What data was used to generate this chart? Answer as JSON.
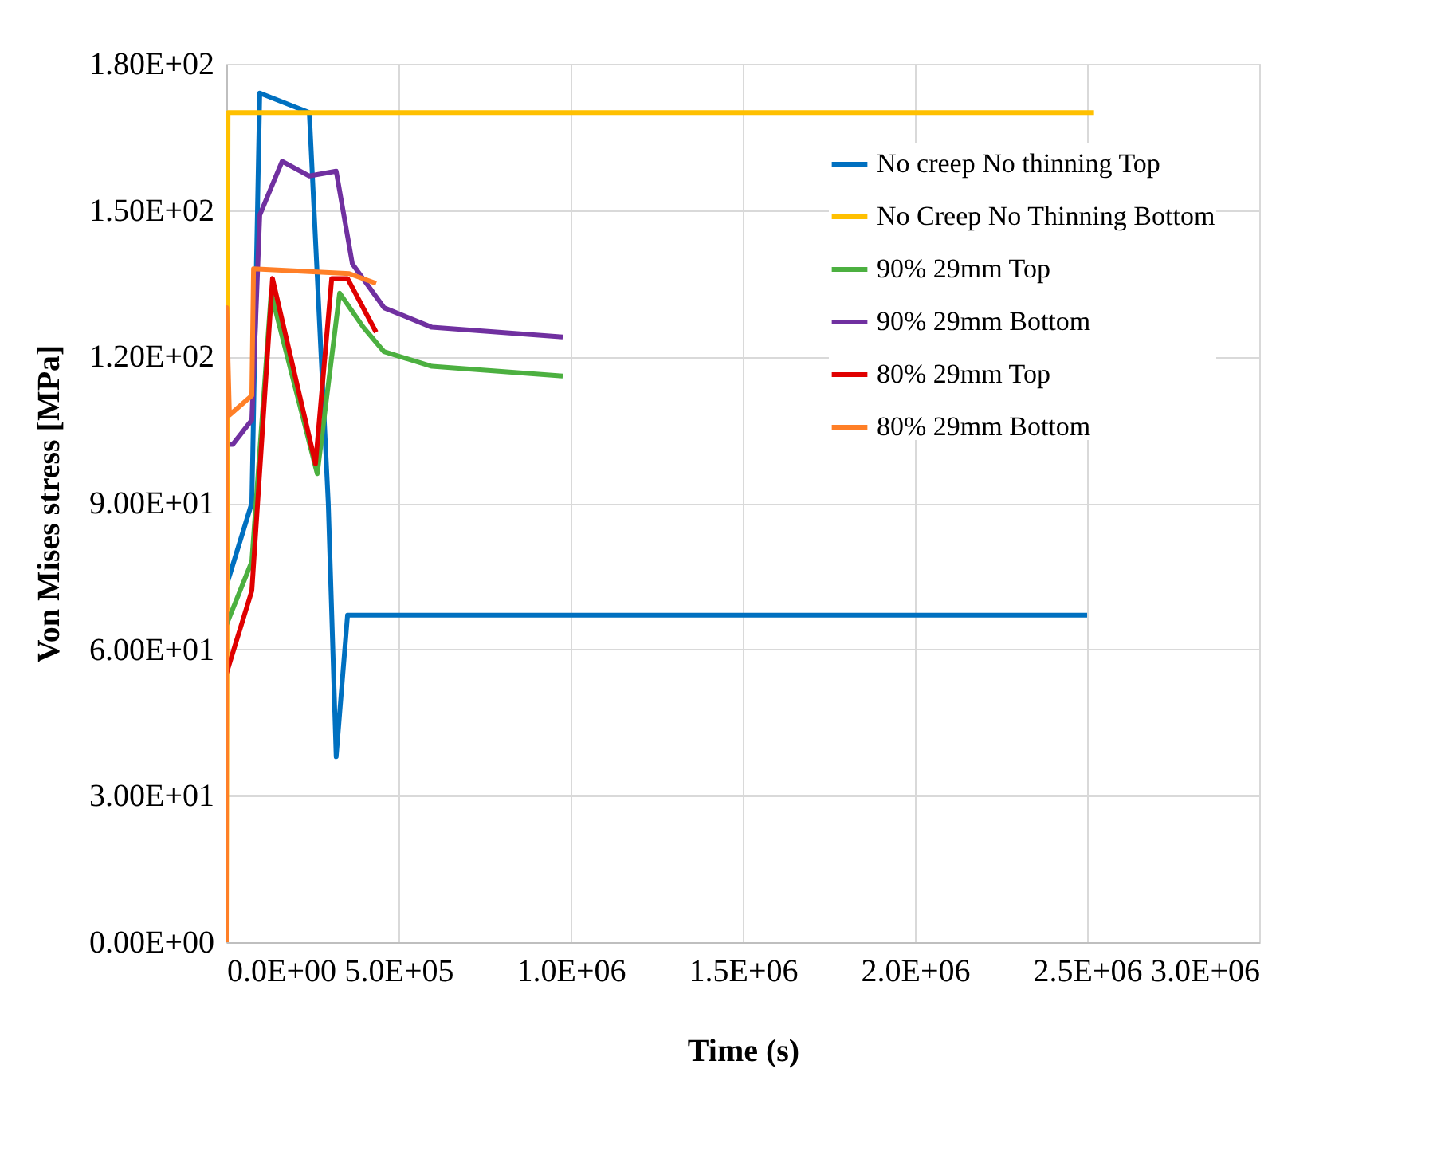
{
  "chart_data": {
    "type": "line",
    "xlabel": "Time (s)",
    "ylabel": "Von Mises stress [MPa]",
    "xlim": [
      0,
      3000000
    ],
    "ylim": [
      0,
      180
    ],
    "xticks": [
      {
        "value": 0,
        "label": "0.0E+00"
      },
      {
        "value": 500000,
        "label": "5.0E+05"
      },
      {
        "value": 1000000,
        "label": "1.0E+06"
      },
      {
        "value": 1500000,
        "label": "1.5E+06"
      },
      {
        "value": 2000000,
        "label": "2.0E+06"
      },
      {
        "value": 2500000,
        "label": "2.5E+06"
      },
      {
        "value": 3000000,
        "label": "3.0E+06"
      }
    ],
    "yticks": [
      {
        "value": 0,
        "label": "0.00E+00"
      },
      {
        "value": 30,
        "label": "3.00E+01"
      },
      {
        "value": 60,
        "label": "6.00E+01"
      },
      {
        "value": 90,
        "label": "9.00E+01"
      },
      {
        "value": 120,
        "label": "1.20E+02"
      },
      {
        "value": 150,
        "label": "1.50E+02"
      },
      {
        "value": 180,
        "label": "1.80E+02"
      }
    ],
    "grid": true,
    "legend": "top right",
    "marker": "none",
    "line_style": "solid",
    "series": [
      {
        "name": "No creep No thinning Top",
        "color": "#0070c0",
        "x": [
          0,
          74000,
          97000,
          241000,
          296000,
          319000,
          352000,
          2500000
        ],
        "values": [
          73,
          90,
          174,
          170,
          90,
          38,
          67,
          67
        ]
      },
      {
        "name": "No Creep No Thinning Bottom",
        "color": "#ffc000",
        "x": [
          0,
          5000,
          2520000
        ],
        "values": [
          0,
          170,
          170
        ]
      },
      {
        "name": "90% 29mm Top",
        "color": "#4cb040",
        "x": [
          0,
          74000,
          130000,
          264000,
          329000,
          398000,
          458000,
          597000,
          977000
        ],
        "values": [
          65,
          78,
          133,
          96,
          133,
          126,
          121,
          118,
          116
        ]
      },
      {
        "name": "90% 29mm Bottom",
        "color": "#7030a0",
        "x": [
          9000,
          18500,
          74000,
          97000,
          162000,
          241000,
          319000,
          366000,
          458000,
          597000,
          977000
        ],
        "values": [
          102,
          102,
          107,
          149,
          160,
          157,
          158,
          139,
          130,
          126,
          124
        ]
      },
      {
        "name": "80% 29mm Top",
        "color": "#e00000",
        "x": [
          0,
          74000,
          134000,
          259000,
          306000,
          352000,
          435000
        ],
        "values": [
          55,
          72,
          136,
          98,
          136,
          136,
          125
        ]
      },
      {
        "name": "80% 29mm Bottom",
        "color": "#ff7f27",
        "x": [
          0,
          1000,
          9000,
          74000,
          79000,
          357000,
          435000
        ],
        "values": [
          0,
          130,
          108,
          112,
          138,
          137,
          135
        ]
      }
    ]
  }
}
